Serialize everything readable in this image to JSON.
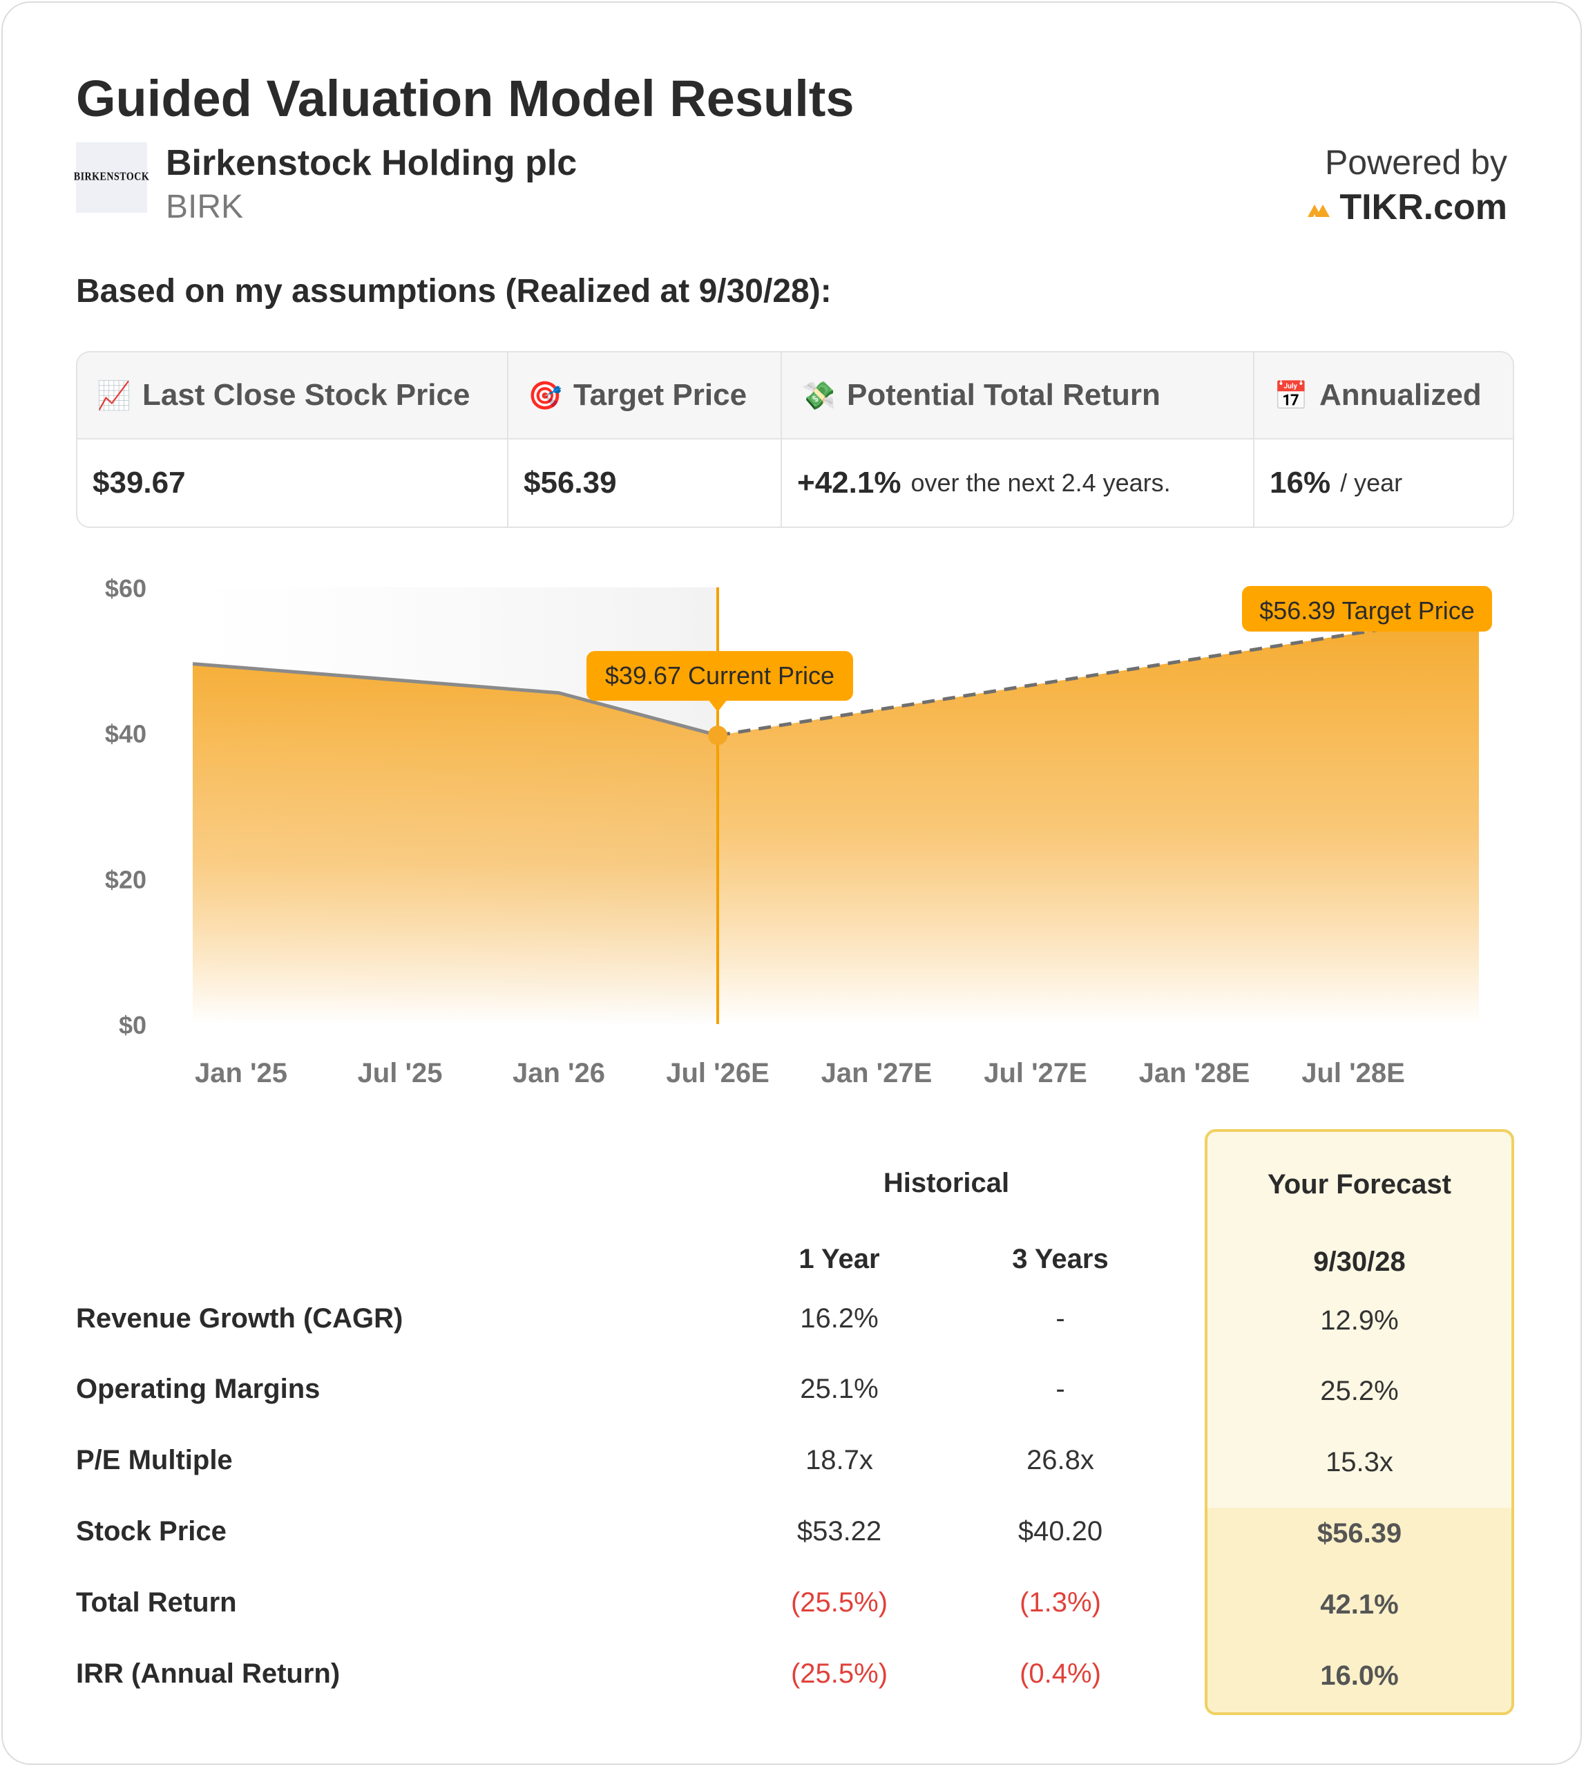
{
  "title": "Guided Valuation Model Results",
  "company": {
    "logo_text": "BIRKENSTOCK",
    "name": "Birkenstock Holding plc",
    "ticker": "BIRK"
  },
  "powered": {
    "label": "Powered by",
    "brand": "TIKR.com"
  },
  "assumption_text": "Based on my assumptions (Realized at 9/30/28):",
  "metrics": [
    {
      "icon": "📈",
      "label": "Last Close Stock Price",
      "value": "$39.67",
      "sub": ""
    },
    {
      "icon": "🎯",
      "label": "Target Price",
      "value": "$56.39",
      "sub": ""
    },
    {
      "icon": "💸",
      "label": "Potential Total Return",
      "value": "+42.1%",
      "sub": "over the next 2.4 years."
    },
    {
      "icon": "📅",
      "label": "Annualized",
      "value": "16%",
      "sub": "/ year"
    }
  ],
  "chart_data": {
    "type": "area",
    "x_ticks": [
      "Jan '25",
      "Jul '25",
      "Jan '26",
      "Jul '26E",
      "Jan '27E",
      "Jul '27E",
      "Jan '28E",
      "Jul '28E"
    ],
    "y_ticks": [
      "$0",
      "$20",
      "$40",
      "$60"
    ],
    "ylim": [
      0,
      60
    ],
    "historical": [
      {
        "x": "Dec '24",
        "y": 49.5
      },
      {
        "x": "Jan '26",
        "y": 45.5
      },
      {
        "x": "Jul '26E",
        "y": 39.67
      }
    ],
    "forecast": [
      {
        "x": "Jul '26E",
        "y": 39.67
      },
      {
        "x": "Oct '28E",
        "y": 56.39
      }
    ],
    "annotations": {
      "current": {
        "label": "$39.67 Current Price",
        "value": 39.67
      },
      "target": {
        "label": "$56.39 Target Price",
        "value": 56.39
      }
    },
    "colors": {
      "area": "#f5a623",
      "line": "#8a8a8a",
      "marker": "#f5a623",
      "label_bg": "#ffa500"
    }
  },
  "table": {
    "historical_header": "Historical",
    "forecast_header": "Your Forecast",
    "col_1y": "1 Year",
    "col_3y": "3 Years",
    "col_fc": "9/30/28",
    "rows": [
      {
        "label": "Revenue Growth (CAGR)",
        "y1": "16.2%",
        "y3": "-",
        "fc": "12.9%"
      },
      {
        "label": "Operating Margins",
        "y1": "25.1%",
        "y3": "-",
        "fc": "25.2%"
      },
      {
        "label": "P/E Multiple",
        "y1": "18.7x",
        "y3": "26.8x",
        "fc": "15.3x"
      },
      {
        "label": "Stock Price",
        "y1": "$53.22",
        "y3": "$40.20",
        "fc": "$56.39"
      },
      {
        "label": "Total Return",
        "y1": "(25.5%)",
        "y3": "(1.3%)",
        "fc": "42.1%"
      },
      {
        "label": "IRR (Annual Return)",
        "y1": "(25.5%)",
        "y3": "(0.4%)",
        "fc": "16.0%"
      }
    ]
  }
}
